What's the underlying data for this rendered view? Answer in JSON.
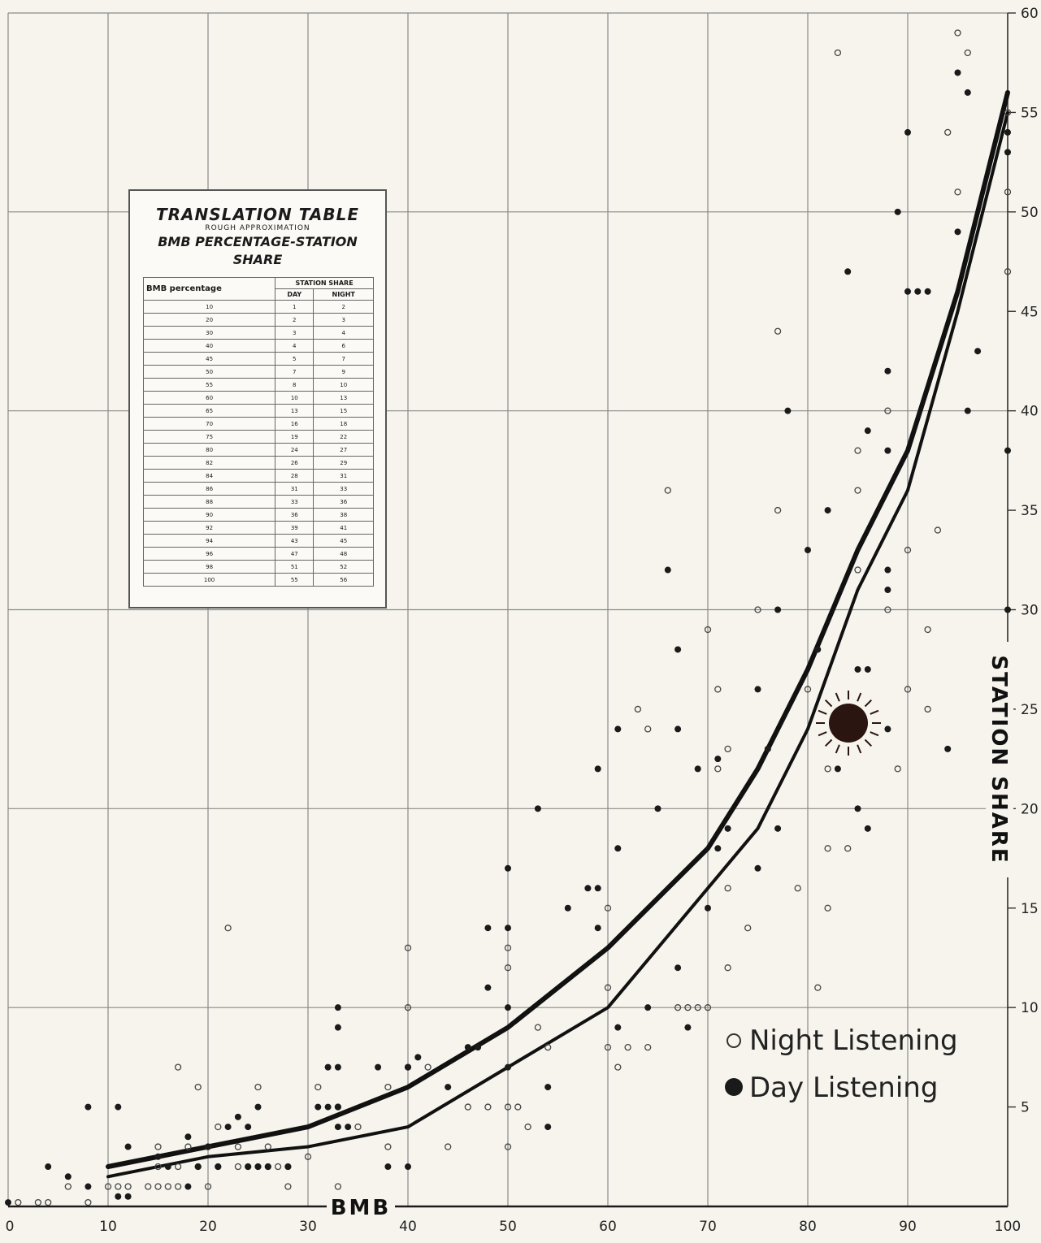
{
  "chart_data": {
    "type": "scatter",
    "xlabel": "BMB",
    "ylabel": "STATION SHARE",
    "xlim": [
      0,
      100
    ],
    "ylim": [
      0,
      60
    ],
    "x_ticks": [
      "0",
      "10",
      "20",
      "30",
      "40",
      "50",
      "60",
      "70",
      "80",
      "90",
      "100"
    ],
    "y_ticks": [
      "5",
      "10",
      "15",
      "20",
      "25",
      "30",
      "35",
      "40",
      "45",
      "50",
      "55",
      "60"
    ],
    "grid": true,
    "legend_placement": "bottom-right",
    "legend": [
      {
        "label": "Night Listening",
        "marker": "open-circle"
      },
      {
        "label": "Day Listening",
        "marker": "filled-circle"
      }
    ],
    "series": [
      {
        "name": "Night Listening",
        "marker": "open",
        "points": [
          [
            1,
            0.2
          ],
          [
            3,
            0.2
          ],
          [
            4,
            0.2
          ],
          [
            8,
            0.2
          ],
          [
            6,
            1
          ],
          [
            10,
            1
          ],
          [
            11,
            1
          ],
          [
            12,
            1
          ],
          [
            14,
            1
          ],
          [
            15,
            1
          ],
          [
            16,
            1
          ],
          [
            17,
            1
          ],
          [
            20,
            1
          ],
          [
            28,
            1
          ],
          [
            33,
            1
          ],
          [
            15,
            2
          ],
          [
            17,
            2
          ],
          [
            19,
            2
          ],
          [
            21,
            2
          ],
          [
            23,
            2
          ],
          [
            24,
            2
          ],
          [
            25,
            2
          ],
          [
            26,
            2
          ],
          [
            27,
            2
          ],
          [
            28,
            2
          ],
          [
            15,
            3
          ],
          [
            18,
            3
          ],
          [
            20,
            3
          ],
          [
            23,
            3
          ],
          [
            26,
            3
          ],
          [
            30,
            2.5
          ],
          [
            35,
            4
          ],
          [
            38,
            3
          ],
          [
            44,
            3
          ],
          [
            50,
            3
          ],
          [
            17,
            7
          ],
          [
            19,
            6
          ],
          [
            21,
            4
          ],
          [
            25,
            6
          ],
          [
            31,
            6
          ],
          [
            33,
            5
          ],
          [
            38,
            6
          ],
          [
            40,
            7
          ],
          [
            42,
            7
          ],
          [
            46,
            5
          ],
          [
            48,
            5
          ],
          [
            50,
            5
          ],
          [
            51,
            5
          ],
          [
            52,
            4
          ],
          [
            54,
            8
          ],
          [
            53,
            9
          ],
          [
            50,
            13
          ],
          [
            50,
            12
          ],
          [
            40,
            10
          ],
          [
            40,
            13
          ],
          [
            22,
            14
          ],
          [
            60,
            15
          ],
          [
            60,
            11
          ],
          [
            60,
            8
          ],
          [
            61,
            7
          ],
          [
            62,
            8
          ],
          [
            64,
            8
          ],
          [
            63,
            25
          ],
          [
            64,
            24
          ],
          [
            66,
            36
          ],
          [
            67,
            10
          ],
          [
            68,
            10
          ],
          [
            69,
            10
          ],
          [
            70,
            10
          ],
          [
            70,
            29
          ],
          [
            71,
            22
          ],
          [
            71,
            26
          ],
          [
            72,
            12
          ],
          [
            72,
            16
          ],
          [
            72,
            23
          ],
          [
            74,
            14
          ],
          [
            75,
            30
          ],
          [
            77,
            35
          ],
          [
            77,
            44
          ],
          [
            79,
            16
          ],
          [
            80,
            26
          ],
          [
            81,
            11
          ],
          [
            82,
            15
          ],
          [
            82,
            18
          ],
          [
            84,
            18
          ],
          [
            85,
            32
          ],
          [
            85,
            36
          ],
          [
            85,
            38
          ],
          [
            88,
            30
          ],
          [
            88,
            40
          ],
          [
            89,
            22
          ],
          [
            90,
            26
          ],
          [
            90,
            33
          ],
          [
            92,
            25
          ],
          [
            92,
            29
          ],
          [
            93,
            34
          ],
          [
            94,
            54
          ],
          [
            95,
            51
          ],
          [
            95,
            59
          ],
          [
            96,
            58
          ],
          [
            100,
            47
          ],
          [
            100,
            51
          ],
          [
            100,
            55
          ],
          [
            83,
            58
          ],
          [
            82,
            22
          ]
        ]
      },
      {
        "name": "Day Listening",
        "marker": "filled",
        "points": [
          [
            0,
            0.2
          ],
          [
            8,
            1
          ],
          [
            11,
            0.5
          ],
          [
            12,
            0.5
          ],
          [
            4,
            2
          ],
          [
            6,
            1.5
          ],
          [
            8,
            5
          ],
          [
            11,
            5
          ],
          [
            12,
            3
          ],
          [
            15,
            2.5
          ],
          [
            16,
            2
          ],
          [
            18,
            1
          ],
          [
            18,
            3.5
          ],
          [
            19,
            2
          ],
          [
            20,
            3
          ],
          [
            21,
            2
          ],
          [
            22,
            4
          ],
          [
            23,
            4.5
          ],
          [
            24,
            2
          ],
          [
            25,
            2
          ],
          [
            26,
            2
          ],
          [
            24,
            4
          ],
          [
            25,
            5
          ],
          [
            28,
            2
          ],
          [
            31,
            5
          ],
          [
            32,
            5
          ],
          [
            32,
            7
          ],
          [
            33,
            10
          ],
          [
            33,
            9
          ],
          [
            33,
            7
          ],
          [
            33,
            5
          ],
          [
            33,
            4
          ],
          [
            34,
            4
          ],
          [
            37,
            7
          ],
          [
            38,
            2
          ],
          [
            40,
            7
          ],
          [
            40,
            2
          ],
          [
            41,
            7.5
          ],
          [
            44,
            6
          ],
          [
            46,
            8
          ],
          [
            47,
            8
          ],
          [
            48,
            11
          ],
          [
            48,
            14
          ],
          [
            50,
            17
          ],
          [
            50,
            14
          ],
          [
            50,
            10
          ],
          [
            50,
            7
          ],
          [
            53,
            20
          ],
          [
            54,
            4
          ],
          [
            54,
            6
          ],
          [
            56,
            15
          ],
          [
            58,
            16
          ],
          [
            59,
            16
          ],
          [
            59,
            22
          ],
          [
            59,
            14
          ],
          [
            61,
            24
          ],
          [
            61,
            9
          ],
          [
            61,
            18
          ],
          [
            64,
            10
          ],
          [
            65,
            20
          ],
          [
            66,
            32
          ],
          [
            67,
            28
          ],
          [
            67,
            24
          ],
          [
            67,
            12
          ],
          [
            68,
            9
          ],
          [
            69,
            22
          ],
          [
            70,
            15
          ],
          [
            71,
            18
          ],
          [
            71,
            22.5
          ],
          [
            72,
            19
          ],
          [
            75,
            17
          ],
          [
            75,
            26
          ],
          [
            76,
            23
          ],
          [
            77,
            19
          ],
          [
            77,
            30
          ],
          [
            78,
            40
          ],
          [
            80,
            33
          ],
          [
            81,
            28
          ],
          [
            82,
            35
          ],
          [
            83,
            22
          ],
          [
            84,
            47
          ],
          [
            85,
            20
          ],
          [
            85,
            27
          ],
          [
            86,
            27
          ],
          [
            86,
            39
          ],
          [
            86,
            19
          ],
          [
            88,
            42
          ],
          [
            88,
            38
          ],
          [
            88,
            31
          ],
          [
            88,
            32
          ],
          [
            88,
            24
          ],
          [
            89,
            50
          ],
          [
            90,
            54
          ],
          [
            90,
            46
          ],
          [
            91,
            46
          ],
          [
            92,
            46
          ],
          [
            94,
            23
          ],
          [
            95,
            49
          ],
          [
            95,
            57
          ],
          [
            96,
            56
          ],
          [
            96,
            40
          ],
          [
            97,
            43
          ],
          [
            100,
            38
          ],
          [
            100,
            30
          ],
          [
            100,
            53
          ],
          [
            100,
            54
          ]
        ]
      },
      {
        "name": "Night",
        "type": "curve",
        "x": [
          10,
          20,
          30,
          40,
          50,
          60,
          70,
          75,
          80,
          85,
          90,
          95,
          100
        ],
        "y": [
          2,
          3,
          4,
          6,
          9,
          13,
          18,
          22,
          27,
          33,
          38,
          46,
          56
        ]
      },
      {
        "name": "Day",
        "type": "curve",
        "x": [
          10,
          20,
          30,
          40,
          50,
          60,
          70,
          75,
          80,
          85,
          90,
          95,
          100
        ],
        "y": [
          1.5,
          2.5,
          3,
          4,
          7,
          10,
          16,
          19,
          24,
          31,
          36,
          45,
          55
        ]
      }
    ]
  },
  "translation_table": {
    "title": "TRANSLATION TABLE",
    "subtitle": "ROUGH APPROXIMATION",
    "heading": "BMB PERCENTAGE-STATION SHARE",
    "col_bmb": "BMB percentage",
    "col_group": "STATION SHARE",
    "col_day": "DAY",
    "col_night": "NIGHT",
    "rows": [
      [
        "10",
        "1",
        "2"
      ],
      [
        "20",
        "2",
        "3"
      ],
      [
        "30",
        "3",
        "4"
      ],
      [
        "40",
        "4",
        "6"
      ],
      [
        "45",
        "5",
        "7"
      ],
      [
        "50",
        "7",
        "9"
      ],
      [
        "55",
        "8",
        "10"
      ],
      [
        "60",
        "10",
        "13"
      ],
      [
        "65",
        "13",
        "15"
      ],
      [
        "70",
        "16",
        "18"
      ],
      [
        "75",
        "19",
        "22"
      ],
      [
        "80",
        "24",
        "27"
      ],
      [
        "82",
        "26",
        "29"
      ],
      [
        "84",
        "28",
        "31"
      ],
      [
        "86",
        "31",
        "33"
      ],
      [
        "88",
        "33",
        "36"
      ],
      [
        "90",
        "36",
        "38"
      ],
      [
        "92",
        "39",
        "41"
      ],
      [
        "94",
        "43",
        "45"
      ],
      [
        "96",
        "47",
        "48"
      ],
      [
        "98",
        "51",
        "52"
      ],
      [
        "100",
        "55",
        "56"
      ]
    ]
  },
  "colors": {
    "background": "#f6f4ec",
    "grid": "#8a8a8a",
    "ink": "#1a1a1a",
    "sun": "#2a1510"
  },
  "icons": [
    "moon-icon",
    "sun-icon"
  ]
}
